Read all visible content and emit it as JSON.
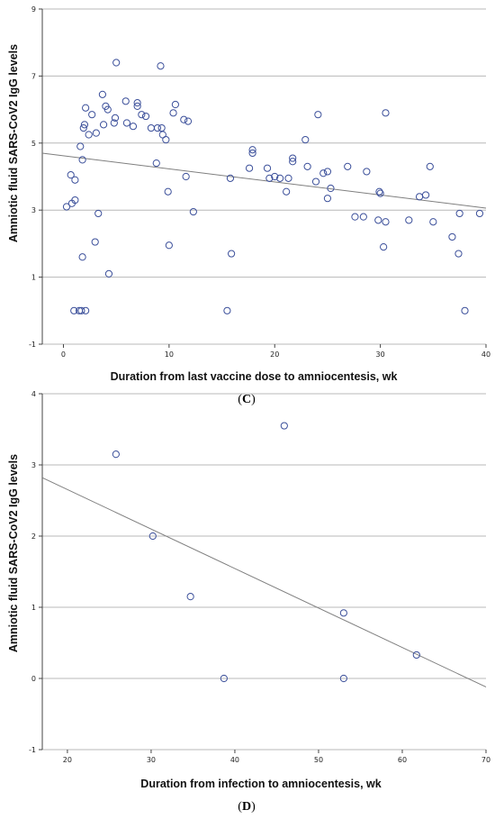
{
  "colors": {
    "grid": "#b8b8b8",
    "axis": "#444444",
    "marker": "#3b4f9a",
    "fit_line": "#7f7f7f"
  },
  "chart_data": [
    {
      "type": "scatter",
      "panel_label": {
        "open": "(",
        "letter": "C",
        "close": ")"
      },
      "xlabel": "Duration from last vaccine dose to amniocentesis, wk",
      "ylabel": "Amniotic fluid SARS-CoV2 IgG levels",
      "xlim": [
        -2,
        40
      ],
      "ylim": [
        -1,
        9
      ],
      "xticks": [
        0,
        10,
        20,
        30,
        40
      ],
      "xtick_labels": [
        "0",
        "10",
        "20",
        "30",
        "40"
      ],
      "yticks": [
        -1,
        1,
        3,
        5,
        7,
        9
      ],
      "ytick_labels": [
        "-1",
        "1",
        "3",
        "5",
        "7",
        "9"
      ],
      "gridlines_y": [
        -1,
        1,
        3,
        5,
        7,
        9
      ],
      "fit_line": {
        "x": [
          -2,
          40
        ],
        "y": [
          4.7,
          3.06
        ]
      },
      "points": [
        [
          0.3,
          3.1
        ],
        [
          0.8,
          3.2
        ],
        [
          0.7,
          4.05
        ],
        [
          1.1,
          3.3
        ],
        [
          1.1,
          3.9
        ],
        [
          1.0,
          0.0
        ],
        [
          1.5,
          0.0
        ],
        [
          1.7,
          0.0
        ],
        [
          2.1,
          0.0
        ],
        [
          1.6,
          4.9
        ],
        [
          1.8,
          4.5
        ],
        [
          1.9,
          5.45
        ],
        [
          2.0,
          5.55
        ],
        [
          2.1,
          6.05
        ],
        [
          2.4,
          5.25
        ],
        [
          2.7,
          5.85
        ],
        [
          1.8,
          1.6
        ],
        [
          3.0,
          2.05
        ],
        [
          3.1,
          5.3
        ],
        [
          3.3,
          2.9
        ],
        [
          3.7,
          6.45
        ],
        [
          3.8,
          5.55
        ],
        [
          4.0,
          6.1
        ],
        [
          4.2,
          6.0
        ],
        [
          4.3,
          1.1
        ],
        [
          4.8,
          5.6
        ],
        [
          4.9,
          5.75
        ],
        [
          5.0,
          7.4
        ],
        [
          5.9,
          6.25
        ],
        [
          6.0,
          5.6
        ],
        [
          6.6,
          5.5
        ],
        [
          7.0,
          6.1
        ],
        [
          7.0,
          6.2
        ],
        [
          7.4,
          5.85
        ],
        [
          7.8,
          5.8
        ],
        [
          8.3,
          5.45
        ],
        [
          8.8,
          4.4
        ],
        [
          8.9,
          5.45
        ],
        [
          9.2,
          7.3
        ],
        [
          9.3,
          5.45
        ],
        [
          9.4,
          5.25
        ],
        [
          9.7,
          5.1
        ],
        [
          9.9,
          3.55
        ],
        [
          10.0,
          1.95
        ],
        [
          10.4,
          5.9
        ],
        [
          10.6,
          6.15
        ],
        [
          11.4,
          5.7
        ],
        [
          11.6,
          4.0
        ],
        [
          11.8,
          5.65
        ],
        [
          12.3,
          2.95
        ],
        [
          15.5,
          0.0
        ],
        [
          15.8,
          3.95
        ],
        [
          15.9,
          1.7
        ],
        [
          17.6,
          4.25
        ],
        [
          17.9,
          4.7
        ],
        [
          17.9,
          4.8
        ],
        [
          19.3,
          4.25
        ],
        [
          19.5,
          3.95
        ],
        [
          20.0,
          4.0
        ],
        [
          20.5,
          3.95
        ],
        [
          21.1,
          3.55
        ],
        [
          21.3,
          3.95
        ],
        [
          21.7,
          4.45
        ],
        [
          21.7,
          4.55
        ],
        [
          22.9,
          5.1
        ],
        [
          23.1,
          4.3
        ],
        [
          23.9,
          3.85
        ],
        [
          24.1,
          5.85
        ],
        [
          24.6,
          4.1
        ],
        [
          25.0,
          3.35
        ],
        [
          25.0,
          4.15
        ],
        [
          25.3,
          3.65
        ],
        [
          26.9,
          4.3
        ],
        [
          27.6,
          2.8
        ],
        [
          28.4,
          2.8
        ],
        [
          28.7,
          4.15
        ],
        [
          29.8,
          2.7
        ],
        [
          29.9,
          3.55
        ],
        [
          30.0,
          3.5
        ],
        [
          30.3,
          1.9
        ],
        [
          30.5,
          2.65
        ],
        [
          30.5,
          5.9
        ],
        [
          32.7,
          2.7
        ],
        [
          33.7,
          3.4
        ],
        [
          34.3,
          3.45
        ],
        [
          34.7,
          4.3
        ],
        [
          35.0,
          2.65
        ],
        [
          36.8,
          2.2
        ],
        [
          37.4,
          1.7
        ],
        [
          37.5,
          2.9
        ],
        [
          38.0,
          0.0
        ],
        [
          39.4,
          2.9
        ]
      ]
    },
    {
      "type": "scatter",
      "panel_label": {
        "open": "(",
        "letter": "D",
        "close": ")"
      },
      "xlabel": "Duration from infection to amniocentesis, wk",
      "ylabel": "Amniotic fluid SARS-CoV2 IgG levels",
      "xlim": [
        17,
        70
      ],
      "ylim": [
        -1,
        4
      ],
      "xticks": [
        20,
        30,
        40,
        50,
        60,
        70
      ],
      "xtick_labels": [
        "20",
        "30",
        "40",
        "50",
        "60",
        "70"
      ],
      "yticks": [
        -1,
        0,
        1,
        2,
        3,
        4
      ],
      "ytick_labels": [
        "-1",
        "0",
        "1",
        "2",
        "3",
        "4"
      ],
      "gridlines_y": [
        -1,
        0,
        1,
        2,
        3,
        4
      ],
      "fit_line": {
        "x": [
          17,
          70
        ],
        "y": [
          2.82,
          -0.12
        ]
      },
      "points": [
        [
          25.8,
          3.15
        ],
        [
          30.2,
          2.0
        ],
        [
          34.7,
          1.15
        ],
        [
          38.7,
          0.0
        ],
        [
          45.9,
          3.55
        ],
        [
          53.0,
          0.92
        ],
        [
          53.0,
          0.0
        ],
        [
          61.7,
          0.33
        ]
      ]
    }
  ]
}
